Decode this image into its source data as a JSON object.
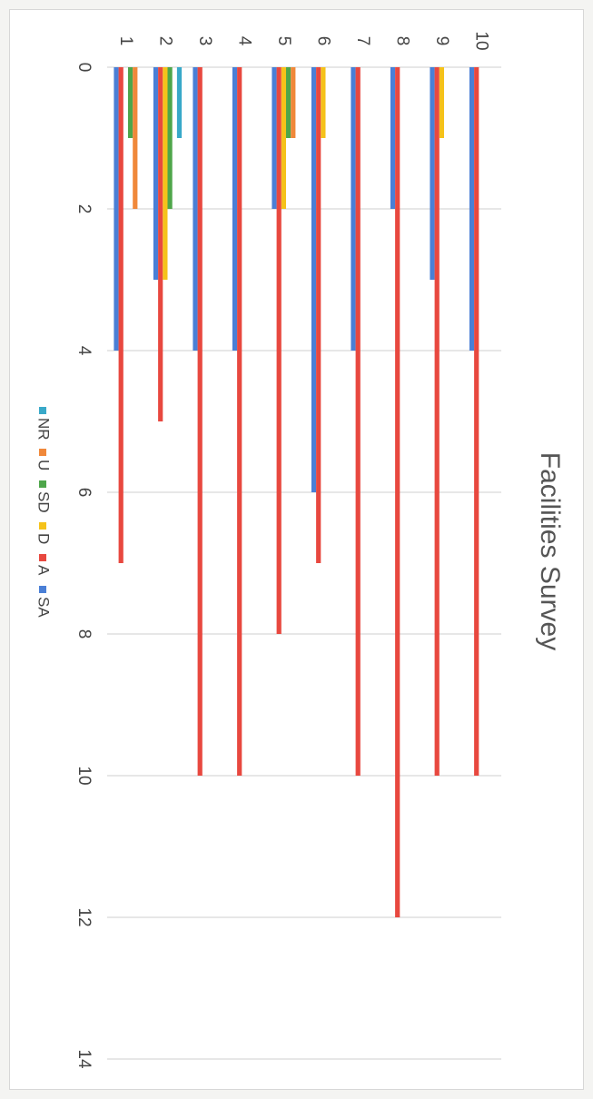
{
  "chart_data": {
    "type": "bar",
    "orientation": "horizontal",
    "title": "Facilities Survey",
    "categories": [
      "1",
      "2",
      "3",
      "4",
      "5",
      "6",
      "7",
      "8",
      "9",
      "10"
    ],
    "xlim": [
      0,
      14
    ],
    "xticks": [
      0,
      2,
      4,
      6,
      8,
      10,
      12,
      14
    ],
    "grid": true,
    "legend_position": "bottom",
    "series": [
      {
        "name": "SA",
        "color": "#4a7fd6",
        "values": [
          4,
          3,
          4,
          4,
          2,
          6,
          4,
          2,
          3,
          4
        ]
      },
      {
        "name": "A",
        "color": "#e8483f",
        "values": [
          7,
          5,
          10,
          10,
          8,
          7,
          10,
          12,
          10,
          10
        ]
      },
      {
        "name": "D",
        "color": "#f5c21a",
        "values": [
          0,
          3,
          0,
          0,
          2,
          1,
          0,
          0,
          1,
          0
        ]
      },
      {
        "name": "SD",
        "color": "#4ea64a",
        "values": [
          1,
          2,
          0,
          0,
          1,
          0,
          0,
          0,
          0,
          0
        ]
      },
      {
        "name": "U",
        "color": "#f0883a",
        "values": [
          2,
          0,
          0,
          0,
          1,
          0,
          0,
          0,
          0,
          0
        ]
      },
      {
        "name": "NR",
        "color": "#39a9c9",
        "values": [
          0,
          1,
          0,
          0,
          0,
          0,
          0,
          0,
          0,
          0
        ]
      }
    ]
  }
}
